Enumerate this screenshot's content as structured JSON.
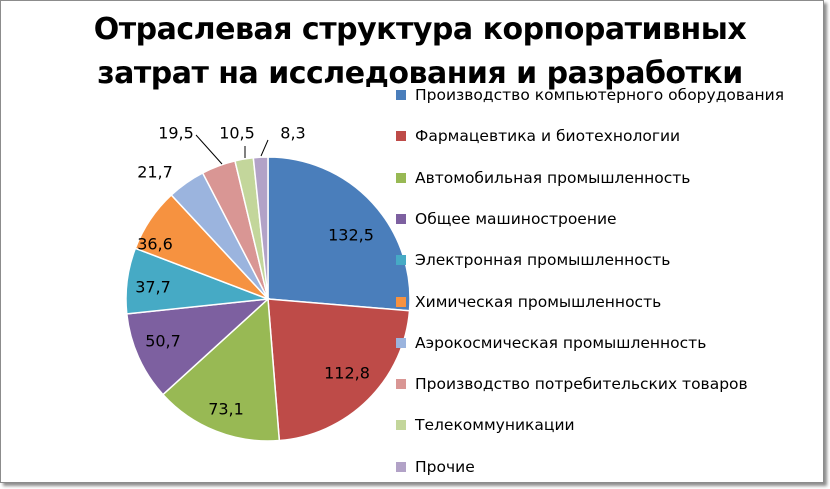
{
  "chart_data": {
    "type": "pie",
    "title": "Отраслевая структура корпоративных затрат на исследования и разработки",
    "title_lines": [
      "Отраслевая структура корпоративных",
      "затрат на исследования и разработки"
    ],
    "legend_position": "right",
    "slices": [
      {
        "label": "Производство компьютерного оборудования",
        "value": 132.5,
        "value_label": "132,5",
        "color": "#4a7ebb"
      },
      {
        "label": "Фармацевтика и биотехнологии",
        "value": 112.8,
        "value_label": "112,8",
        "color": "#be4b48"
      },
      {
        "label": "Автомобильная промышленность",
        "value": 73.1,
        "value_label": "73,1",
        "color": "#98b954"
      },
      {
        "label": "Общее машиностроение",
        "value": 50.7,
        "value_label": "50,7",
        "color": "#7d60a0"
      },
      {
        "label": "Электронная промышленность",
        "value": 37.7,
        "value_label": "37,7",
        "color": "#46aac5"
      },
      {
        "label": "Химическая промышленность",
        "value": 36.6,
        "value_label": "36,6",
        "color": "#f69240"
      },
      {
        "label": "Аэрокосмическая промышленность",
        "value": 21.7,
        "value_label": "21,7",
        "color": "#9bb4de"
      },
      {
        "label": "Производство потребительских товаров",
        "value": 19.5,
        "value_label": "19,5",
        "color": "#d99694"
      },
      {
        "label": "Телекоммуникации",
        "value": 10.5,
        "value_label": "10,5",
        "color": "#c3d69b"
      },
      {
        "label": "Прочие",
        "value": 8.3,
        "value_label": "8,3",
        "color": "#b2a2c7"
      }
    ]
  }
}
